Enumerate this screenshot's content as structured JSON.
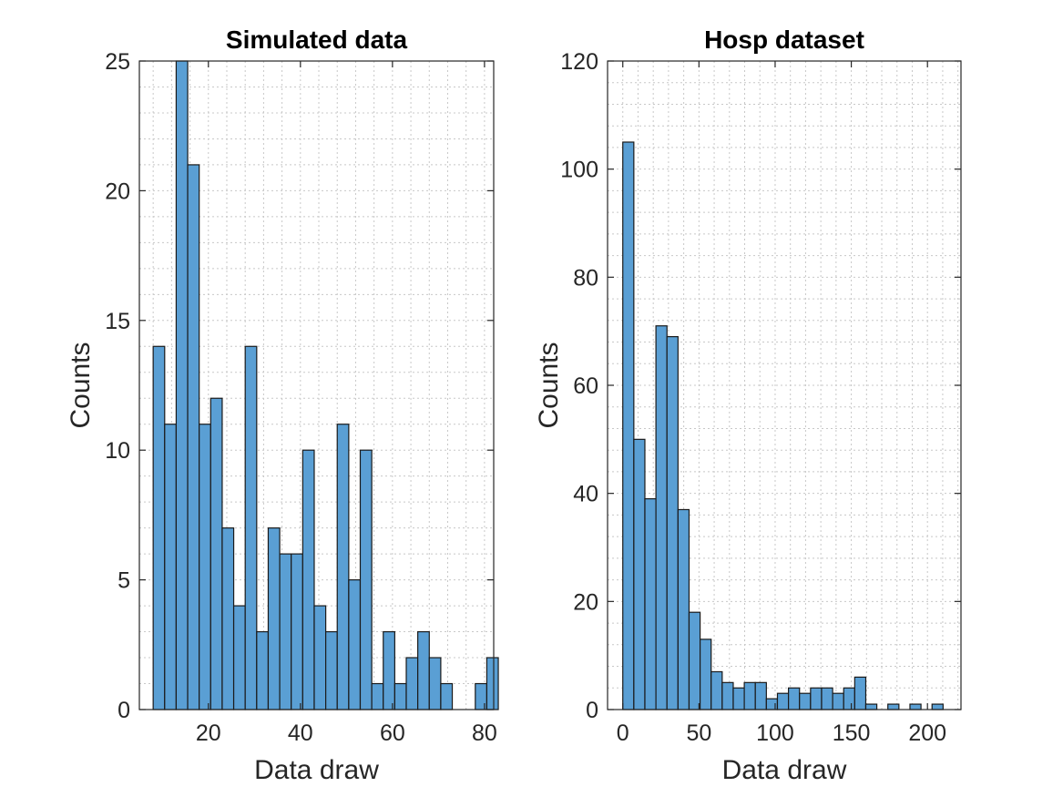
{
  "chart_data": [
    {
      "type": "bar",
      "title": "Simulated data",
      "xlabel": "Data draw",
      "ylabel": "Counts",
      "xlim": [
        5,
        82
      ],
      "ylim": [
        0,
        25
      ],
      "xticks": [
        20,
        40,
        60,
        80
      ],
      "yticks": [
        0,
        5,
        10,
        15,
        20,
        25
      ],
      "grid": true,
      "bin_start": 8,
      "bin_width": 2.5,
      "values": [
        14,
        11,
        25,
        21,
        11,
        12,
        7,
        4,
        14,
        3,
        7,
        6,
        6,
        10,
        4,
        3,
        11,
        5,
        10,
        1,
        3,
        1,
        2,
        3,
        2,
        1,
        0,
        0,
        1,
        2
      ],
      "bar_color": "#5a9fd4"
    },
    {
      "type": "bar",
      "title": "Hosp dataset",
      "xlabel": "Data draw",
      "ylabel": "Counts",
      "xlim": [
        -10,
        222
      ],
      "ylim": [
        0,
        120
      ],
      "xticks": [
        0,
        50,
        100,
        150,
        200
      ],
      "yticks": [
        0,
        20,
        40,
        60,
        80,
        100,
        120
      ],
      "grid": true,
      "bin_start": 0,
      "bin_width": 7.25,
      "values": [
        105,
        50,
        39,
        71,
        69,
        37,
        18,
        13,
        7,
        5,
        4,
        5,
        5,
        2,
        3,
        4,
        3,
        4,
        4,
        3,
        4,
        6,
        1,
        0,
        1,
        0,
        1,
        0,
        1
      ],
      "bar_color": "#5a9fd4"
    }
  ]
}
